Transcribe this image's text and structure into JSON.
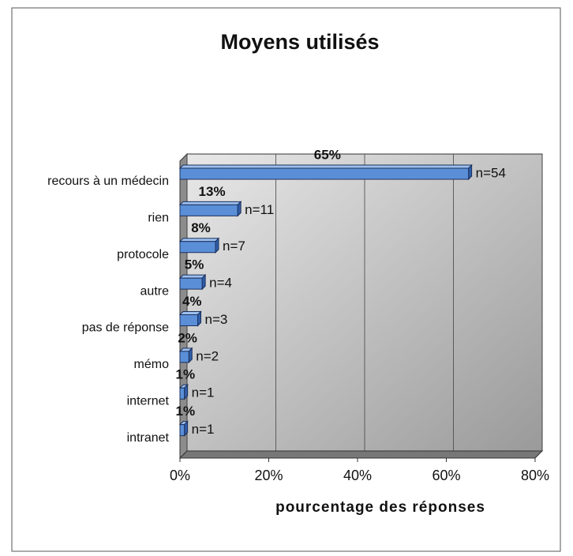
{
  "chart_data": {
    "type": "bar",
    "orientation": "horizontal",
    "title": "Moyens utilisés",
    "x_label": "pourcentage des réponses",
    "categories": [
      "recours à un médecin",
      "rien",
      "protocole",
      "autre",
      "pas de réponse",
      "mémo",
      "internet",
      "intranet"
    ],
    "values": [
      65,
      13,
      8,
      5,
      4,
      2,
      1,
      1
    ],
    "value_labels": [
      "65%",
      "13%",
      "8%",
      "5%",
      "4%",
      "2%",
      "1%",
      "1%"
    ],
    "annotations": [
      "n=54",
      "n=11",
      "n=7",
      "n=4",
      "n=3",
      "n=2",
      "n=1",
      "n=1"
    ],
    "color": "#5a8fd8",
    "xlim": [
      0,
      80
    ],
    "xticks": [
      {
        "value": 0,
        "label": "0%"
      },
      {
        "value": 20,
        "label": "20%"
      },
      {
        "value": 40,
        "label": "40%"
      },
      {
        "value": 60,
        "label": "60%"
      },
      {
        "value": 80,
        "label": "80%"
      }
    ],
    "grid": true
  }
}
